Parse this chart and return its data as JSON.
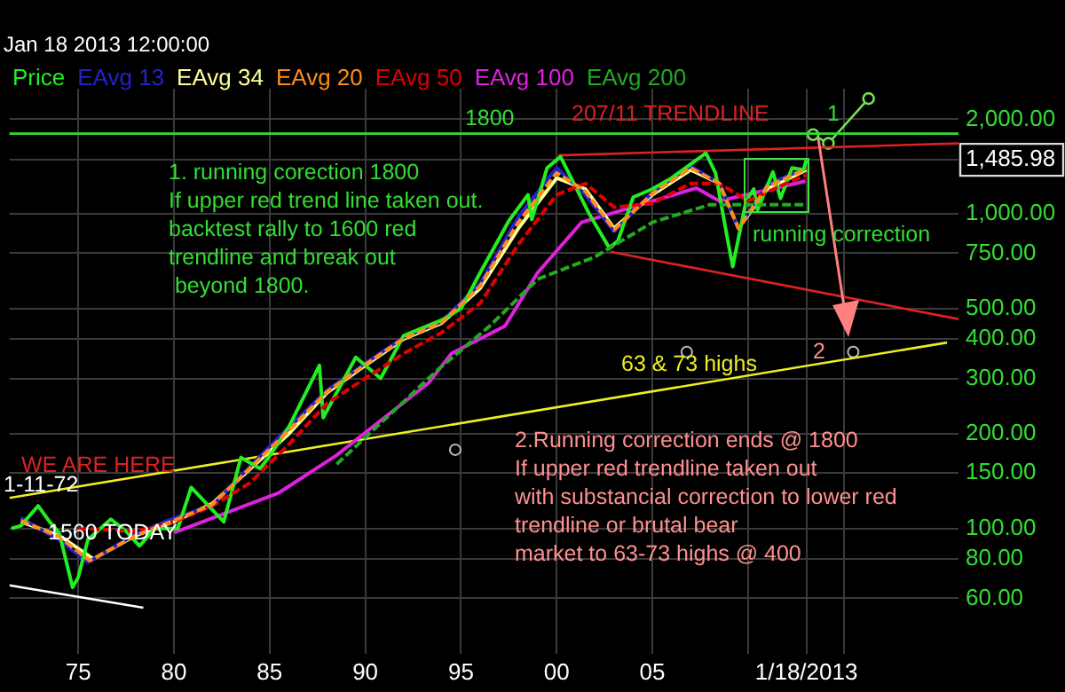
{
  "chart_data": {
    "type": "line",
    "subtitle": "Jan 18 2013 12:00:00",
    "xlim": [
      1971.4,
      2021
    ],
    "ylim": [
      40,
      2500
    ],
    "log": "y",
    "grid": true,
    "legend": "top left",
    "xticks": [
      {
        "value": 1975,
        "label": "75"
      },
      {
        "value": 1980,
        "label": "80"
      },
      {
        "value": 1985,
        "label": "85"
      },
      {
        "value": 1990,
        "label": "90"
      },
      {
        "value": 1995,
        "label": "95"
      },
      {
        "value": 2000,
        "label": "00"
      },
      {
        "value": 2005,
        "label": "05"
      },
      {
        "value": 2010,
        "label": null
      },
      {
        "value": 2013.05,
        "label": "1/18/2013"
      },
      {
        "value": 2015,
        "label": null
      }
    ],
    "yticks": [
      {
        "value": 60,
        "label": "60.00"
      },
      {
        "value": 80,
        "label": "80.00"
      },
      {
        "value": 100,
        "label": "100.00"
      },
      {
        "value": 150,
        "label": "150.00"
      },
      {
        "value": 200,
        "label": "200.00"
      },
      {
        "value": 300,
        "label": "300.00"
      },
      {
        "value": 400,
        "label": "400.00"
      },
      {
        "value": 500,
        "label": "500.00"
      },
      {
        "value": 750,
        "label": "750.00"
      },
      {
        "value": 1000,
        "label": "1,000.00"
      },
      {
        "value": 1485.98,
        "label": "1,485.98"
      },
      {
        "value": 2000,
        "label": "2,000.00"
      }
    ],
    "series": [
      {
        "name": "Price",
        "color": "#22ee22",
        "x": [
          1971.5,
          1972,
          1972.9,
          1973.5,
          1974,
          1974.7,
          1975,
          1975.5,
          1976.7,
          1977.5,
          1978.2,
          1979,
          1980.2,
          1980.9,
          1982.6,
          1983.5,
          1984.5,
          1985,
          1986,
          1987.6,
          1987.8,
          1989.5,
          1990.8,
          1992,
          1994,
          1995,
          1996,
          1997.5,
          1998.5,
          1998.7,
          1999.5,
          2000.2,
          2001.7,
          2002.75,
          2003.2,
          2004,
          2005,
          2006,
          2007.8,
          2008.3,
          2008.9,
          2009.2,
          2009.9,
          2010.3,
          2010.5,
          2011.3,
          2011.7,
          2012.3,
          2012.9,
          2013.05
        ],
        "values": [
          100,
          102,
          118,
          105,
          97,
          65,
          70,
          92,
          107,
          98,
          88,
          100,
          100,
          135,
          105,
          168,
          155,
          170,
          210,
          330,
          225,
          350,
          300,
          410,
          460,
          500,
          650,
          950,
          1150,
          960,
          1400,
          1520,
          1000,
          780,
          820,
          1130,
          1200,
          1300,
          1560,
          1350,
          850,
          680,
          1100,
          1200,
          1030,
          1360,
          1120,
          1400,
          1380,
          1485.98
        ]
      },
      {
        "name": "EAvg 13",
        "color": "#2222cc",
        "x": [
          1972,
          1974,
          1975.5,
          1978,
          1980,
          1982,
          1984,
          1986,
          1988,
          1990,
          1992,
          1994,
          1996,
          1998,
          2000,
          2001.5,
          2003,
          2005,
          2007,
          2008.5,
          2009.5,
          2011,
          2013.05
        ],
        "values": [
          108,
          92,
          78,
          96,
          108,
          118,
          158,
          210,
          275,
          335,
          405,
          455,
          600,
          980,
          1400,
          1150,
          880,
          1170,
          1420,
          1250,
          900,
          1240,
          1400
        ]
      },
      {
        "name": "EAvg 34",
        "color": "#ffff99",
        "x": [
          1972,
          1974,
          1975.8,
          1978,
          1980,
          1982,
          1984,
          1986,
          1988,
          1990,
          1992,
          1994,
          1996,
          1998,
          2000,
          2001.5,
          2003,
          2005,
          2007,
          2008.5,
          2009.5,
          2011,
          2013.05
        ],
        "values": [
          105,
          95,
          80,
          95,
          105,
          120,
          155,
          200,
          270,
          330,
          400,
          450,
          580,
          900,
          1300,
          1200,
          900,
          1150,
          1380,
          1250,
          900,
          1200,
          1380
        ]
      },
      {
        "name": "EAvg 20",
        "line_style": "dashed",
        "color": "#ff8c1a",
        "x": [
          1972,
          1974,
          1975.6,
          1978,
          1980,
          1982,
          1984,
          1986,
          1988,
          1990,
          1992,
          1994,
          1996,
          1998,
          2000,
          2001.5,
          2003,
          2005,
          2007,
          2008.5,
          2009.5,
          2011,
          2013.05
        ],
        "values": [
          106,
          94,
          79,
          95,
          106,
          119,
          156,
          205,
          272,
          332,
          402,
          452,
          590,
          940,
          1350,
          1180,
          890,
          1160,
          1400,
          1250,
          900,
          1220,
          1390
        ]
      },
      {
        "name": "EAvg 50",
        "line_style": "dashed",
        "color": "#e00000",
        "x": [
          1975,
          1978,
          1980,
          1982,
          1984,
          1986,
          1988,
          1990,
          1992,
          1994,
          1996,
          1998,
          2000,
          2001.5,
          2003,
          2005,
          2007,
          2008.5,
          2010,
          2012,
          2013.05
        ],
        "values": [
          100,
          98,
          105,
          118,
          140,
          185,
          250,
          300,
          360,
          420,
          520,
          800,
          1150,
          1250,
          1050,
          1080,
          1250,
          1250,
          1100,
          1250,
          1330
        ]
      },
      {
        "name": "EAvg 100",
        "color": "#e020e0",
        "x": [
          1980,
          1985.5,
          1988.5,
          1993.3,
          1994.5,
          1997.3,
          1999,
          2001.3,
          2007.3,
          2008.5,
          2013
        ],
        "values": [
          97,
          130,
          171,
          290,
          360,
          440,
          650,
          940,
          1208,
          1100,
          1270
        ]
      },
      {
        "name": "EAvg 200",
        "line_style": "dashed",
        "color": "#22aa22",
        "x": [
          1988.5,
          1993.8,
          1996.5,
          1999,
          2002,
          2005,
          2008,
          2013
        ],
        "values": [
          160,
          320,
          440,
          620,
          730,
          940,
          1070,
          1070
        ]
      },
      {
        "color": "#eeee22",
        "x": [
          1971.4,
          2020.4
        ],
        "values": [
          125,
          390
        ]
      },
      {
        "color": "#dd2222",
        "x": [
          2000.1,
          2021
        ],
        "values": [
          1535,
          1676
        ]
      },
      {
        "color": "#dd2222",
        "x": [
          2002.8,
          2021
        ],
        "values": [
          758,
          463
        ]
      },
      {
        "color": "#ffffff",
        "x": [
          1971.4,
          1978.4
        ],
        "values": [
          66,
          56
        ]
      },
      {
        "color": "#77dd55",
        "marker": "circle",
        "x": [
          2013.4,
          2014.2,
          2016.3
        ],
        "values": [
          1786,
          1676,
          2326
        ]
      },
      {
        "type": "scatter",
        "color": "#bbbbbb",
        "marker": "circle",
        "x": [
          1994.7,
          2006.8,
          2015.5
        ],
        "values": [
          178,
          364,
          364
        ]
      }
    ],
    "ref_lines": [
      {
        "axis": "y",
        "value": 1800,
        "label": "1800",
        "color": "#33dd33"
      }
    ],
    "annotations": [
      "1. running corection 1800\nIf upper red trend line taken out.\nbacktest rally to 1600 red\ntrendline and break out\n beyond 1800.",
      "2.Running correction ends @ 1800\nIf upper red trendline taken out\nwith substancial correction to lower red\ntrendline or brutal bear\nmarket to 63-73 highs @ 400",
      "207/11 TRENDLINE",
      "running correction",
      "63 & 73 highs",
      "1",
      "2",
      "WE ARE HERE",
      "1-11-72",
      "1560 TODAY"
    ]
  }
}
